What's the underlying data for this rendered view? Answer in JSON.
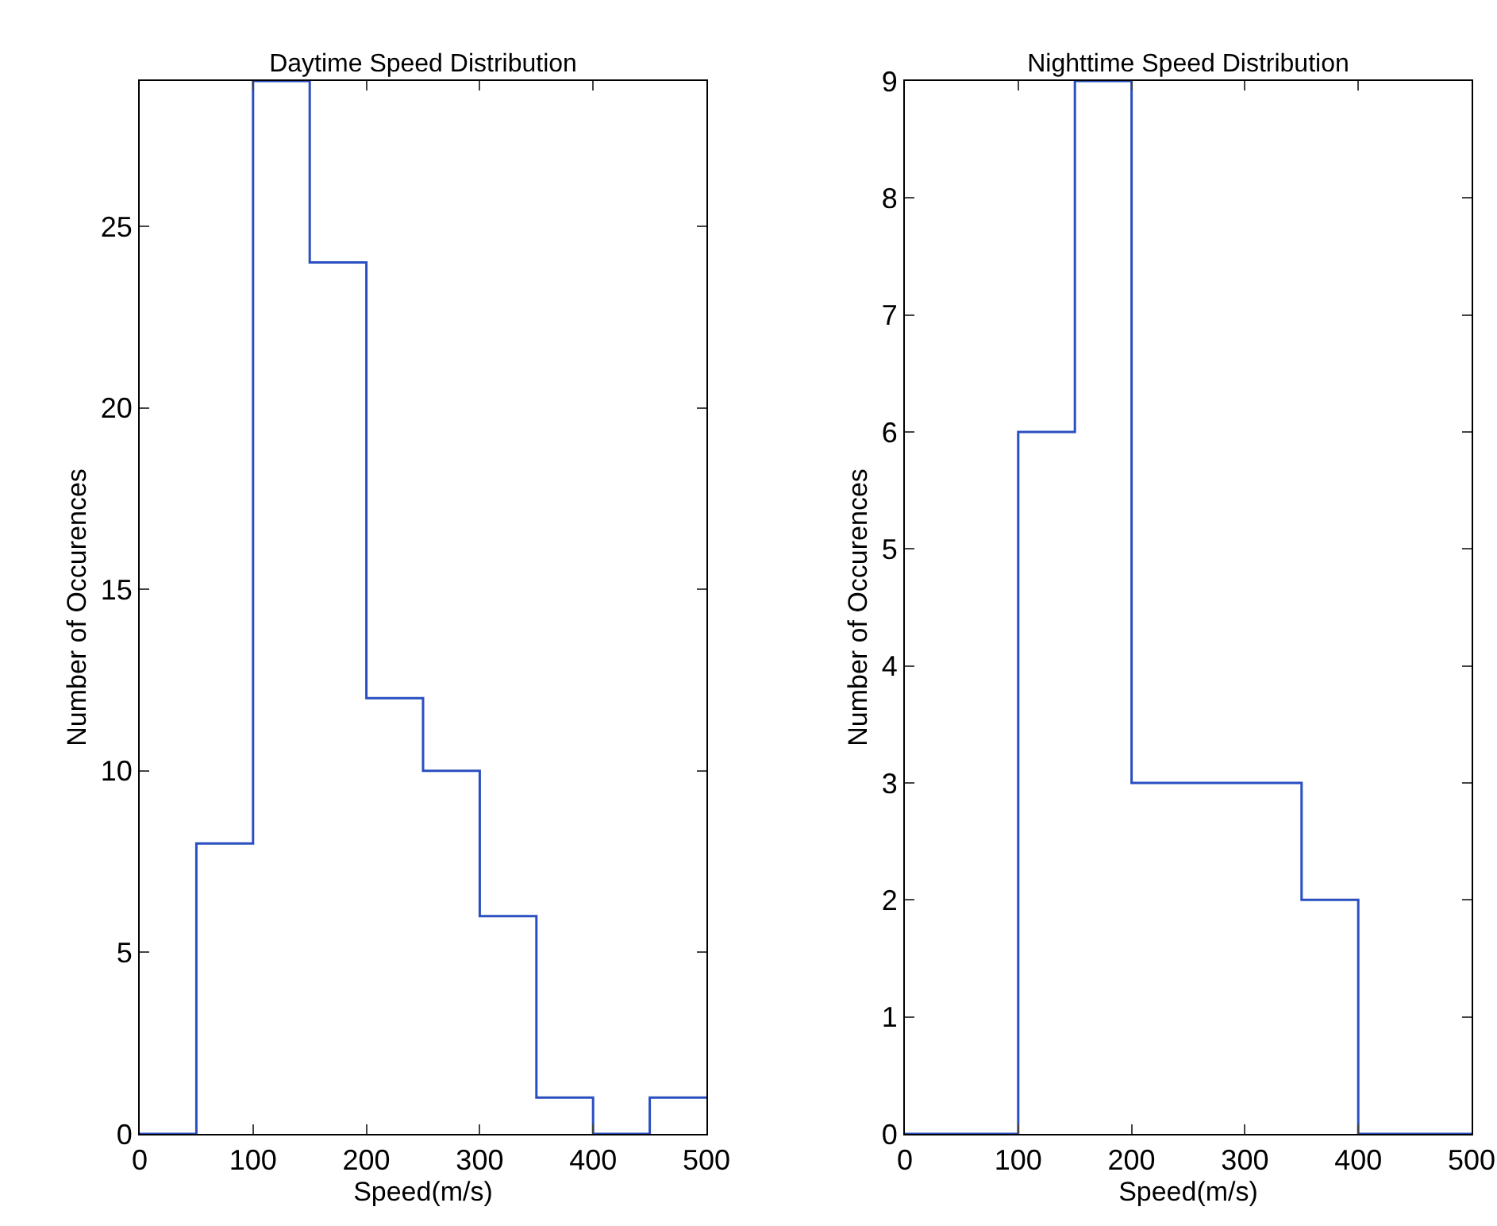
{
  "chart_data": [
    {
      "type": "histogram",
      "title": "Daytime Speed Distribution",
      "xlabel": "Speed(m/s)",
      "ylabel": "Number of Occurences",
      "bins": [
        0,
        50,
        100,
        150,
        200,
        250,
        300,
        350,
        400,
        450,
        500
      ],
      "values": [
        0,
        8,
        29,
        24,
        12,
        10,
        6,
        1,
        0,
        1
      ],
      "color": "#2a4fc0",
      "xlim": [
        0,
        500
      ],
      "xticks": [
        0,
        100,
        200,
        300,
        400,
        500
      ],
      "ylim": [
        0,
        29
      ],
      "yticks": [
        0,
        5,
        10,
        15,
        20,
        25
      ]
    },
    {
      "type": "histogram",
      "title": "Nighttime Speed Distribution",
      "xlabel": "Speed(m/s)",
      "ylabel": "Number of Occurences",
      "bins": [
        0,
        50,
        100,
        150,
        200,
        250,
        300,
        350,
        400,
        450,
        500
      ],
      "values": [
        0,
        0,
        6,
        9,
        3,
        3,
        3,
        2,
        0,
        0
      ],
      "color": "#2a4fc0",
      "xlim": [
        0,
        500
      ],
      "xticks": [
        0,
        100,
        200,
        300,
        400,
        500
      ],
      "ylim": [
        0,
        9
      ],
      "yticks": [
        0,
        1,
        2,
        3,
        4,
        5,
        6,
        7,
        8,
        9
      ]
    }
  ]
}
